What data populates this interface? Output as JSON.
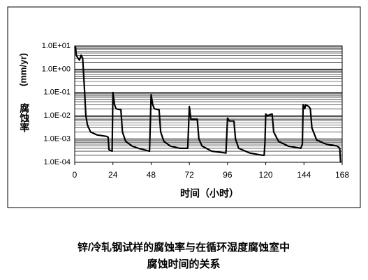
{
  "chart_data": {
    "type": "line",
    "ylabel_unit": "(mm/yr)",
    "ylabel": "腐蚀率",
    "xlabel": "时间（小时）",
    "caption": [
      "锌/冷轧钢试样的腐蚀率与在循环湿度腐蚀室中",
      "腐蚀时间的关系"
    ],
    "log_y": true,
    "grid": true,
    "xlim": [
      0,
      168
    ],
    "xticks": [
      0,
      24,
      48,
      72,
      96,
      120,
      144,
      168
    ],
    "ylim": [
      0.0001,
      10
    ],
    "yticks": [
      {
        "value": 0.0001,
        "label": "1.0E-04"
      },
      {
        "value": 0.001,
        "label": "1.0E-03"
      },
      {
        "value": 0.01,
        "label": "1.0E-02"
      },
      {
        "value": 0.1,
        "label": "1.0E-01"
      },
      {
        "value": 1,
        "label": "1.0E+00"
      },
      {
        "value": 10,
        "label": "1.0E+01"
      }
    ],
    "series": [
      {
        "color": "#000000",
        "x": [
          0,
          0.5,
          1,
          2,
          3,
          4,
          5,
          6,
          7,
          8,
          10,
          14,
          20,
          21,
          21.5,
          23.5,
          24,
          25,
          26,
          29,
          30,
          32,
          36,
          40,
          47,
          48,
          49,
          50,
          53,
          54,
          56,
          60,
          66,
          71,
          72,
          73,
          77,
          78,
          80,
          86,
          95,
          96,
          97,
          100,
          101,
          103,
          110,
          118,
          119,
          119.5,
          120,
          121,
          124,
          125,
          128,
          134,
          142,
          143,
          143.5,
          144.5,
          145,
          147,
          148,
          149,
          152,
          158,
          165,
          166.5,
          167
        ],
        "values": [
          8,
          9,
          4,
          3,
          2.5,
          4,
          3,
          0.2,
          0.01,
          0.004,
          0.002,
          0.0015,
          0.0013,
          0.0012,
          0.00035,
          0.0003,
          0.1,
          0.03,
          0.02,
          0.018,
          0.002,
          0.0008,
          0.0005,
          0.0004,
          0.0003,
          0.08,
          0.03,
          0.02,
          0.018,
          0.002,
          0.0008,
          0.0005,
          0.0004,
          0.0004,
          0.025,
          0.007,
          0.007,
          0.001,
          0.0005,
          0.0003,
          0.00025,
          0.008,
          0.006,
          0.006,
          0.001,
          0.0004,
          0.00025,
          0.0002,
          0.0002,
          0.0007,
          0.012,
          0.01,
          0.012,
          0.002,
          0.0008,
          0.0005,
          0.0004,
          0.0006,
          0.03,
          0.02,
          0.03,
          0.025,
          0.02,
          0.003,
          0.0009,
          0.0006,
          0.0005,
          0.0004,
          0.0001
        ]
      }
    ]
  }
}
